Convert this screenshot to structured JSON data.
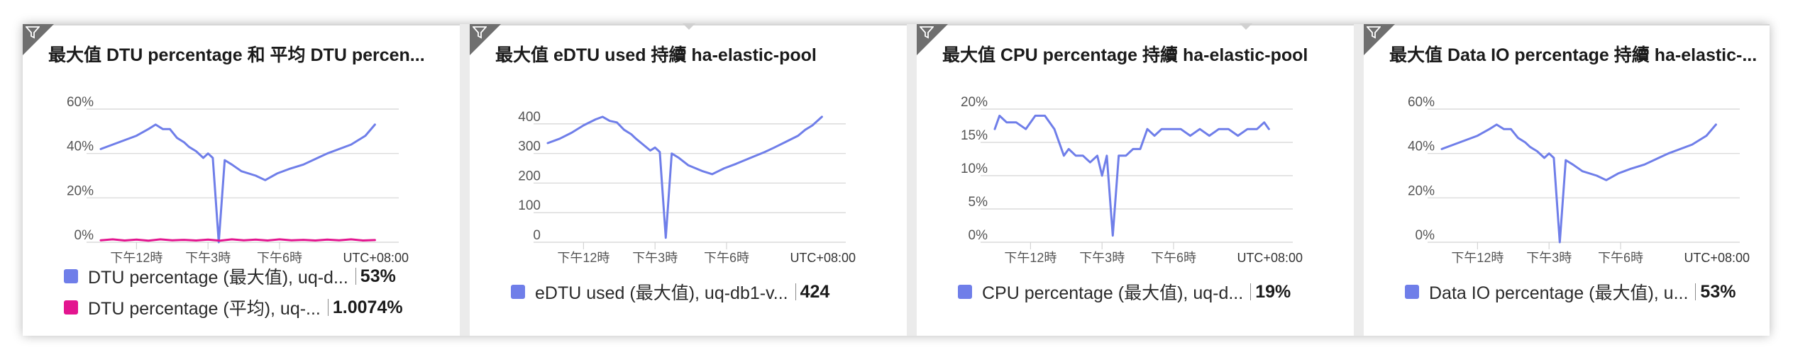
{
  "colors": {
    "series_blue": "#6f7ee9",
    "series_pink": "#e3158f",
    "grid": "#d4d4d4",
    "axis_text": "#555555"
  },
  "tiles": [
    {
      "title": "最大值 DTU percentage 和 平均 DTU percen...",
      "legend": [
        {
          "name": "DTU percentage (最大值), uq-d...",
          "value": "53%"
        },
        {
          "name": "DTU percentage (平均), uq-...",
          "value": "1.0074%"
        }
      ]
    },
    {
      "title": "最大值 eDTU used 持續 ha-elastic-pool",
      "legend": [
        {
          "name": "eDTU used (最大值), uq-db1-v...",
          "value": "424"
        }
      ]
    },
    {
      "title": "最大值 CPU percentage 持續 ha-elastic-pool",
      "legend": [
        {
          "name": "CPU percentage (最大值), uq-d...",
          "value": "19%"
        }
      ]
    },
    {
      "title": "最大值 Data IO percentage 持續 ha-elastic-...",
      "legend": [
        {
          "name": "Data IO percentage (最大值), u...",
          "value": "53%"
        }
      ]
    }
  ],
  "chart_data": [
    {
      "type": "line",
      "title": "最大值 DTU percentage 和 平均 DTU percen...",
      "y_ticks": [
        "60%",
        "40%",
        "20%",
        "0%"
      ],
      "y_tick_values": [
        60,
        40,
        20,
        0
      ],
      "ylim": [
        0,
        60
      ],
      "x_ticks": [
        "下午12時",
        "下午3時",
        "下午6時"
      ],
      "x_tick_values": [
        12,
        15,
        18
      ],
      "xlim": [
        10.5,
        23
      ],
      "timezone_label": "UTC+08:00",
      "grid": true,
      "series": [
        {
          "name": "DTU percentage (最大值), uq-d...",
          "color": "#6f7ee9",
          "x": [
            10.5,
            11,
            11.5,
            12,
            12.5,
            12.8,
            13.1,
            13.4,
            13.7,
            14,
            14.2,
            14.5,
            14.8,
            15,
            15.2,
            15.45,
            15.7,
            16,
            16.4,
            17,
            17.4,
            17.9,
            18.4,
            19,
            19.6,
            20,
            20.5,
            21,
            21.3,
            21.6,
            22
          ],
          "y": [
            42,
            44,
            46,
            48,
            51,
            53,
            51,
            51,
            47,
            45,
            43,
            41,
            38,
            40,
            38,
            0,
            37,
            35,
            32,
            30,
            28,
            31,
            33,
            35,
            38,
            40,
            42,
            44,
            46,
            48,
            53
          ]
        },
        {
          "name": "DTU percentage (平均), uq-...",
          "color": "#e3158f",
          "x": [
            10.5,
            11,
            11.5,
            12,
            12.5,
            13,
            13.5,
            14,
            14.5,
            15,
            15.5,
            16,
            16.5,
            17,
            17.5,
            18,
            18.5,
            19,
            19.5,
            20,
            20.5,
            21,
            21.5,
            22
          ],
          "y": [
            0.9,
            1.3,
            0.8,
            1.2,
            0.7,
            1.3,
            0.9,
            1.1,
            0.8,
            1.2,
            0.7,
            1.3,
            0.9,
            1.2,
            0.8,
            1.3,
            0.9,
            1.1,
            0.8,
            1.2,
            0.9,
            1.3,
            0.8,
            1.0
          ]
        }
      ]
    },
    {
      "type": "line",
      "title": "最大值 eDTU used 持續 ha-elastic-pool",
      "y_ticks": [
        "400",
        "300",
        "200",
        "100",
        "0"
      ],
      "y_tick_values": [
        400,
        300,
        200,
        100,
        0
      ],
      "ylim": [
        0,
        450
      ],
      "x_ticks": [
        "下午12時",
        "下午3時",
        "下午6時"
      ],
      "x_tick_values": [
        12,
        15,
        18
      ],
      "xlim": [
        10.5,
        23
      ],
      "timezone_label": "UTC+08:00",
      "grid": true,
      "series": [
        {
          "name": "eDTU used (最大值), uq-db1-v...",
          "color": "#6f7ee9",
          "x": [
            10.5,
            11,
            11.5,
            12,
            12.5,
            12.8,
            13.1,
            13.4,
            13.7,
            14,
            14.2,
            14.5,
            14.8,
            15,
            15.2,
            15.45,
            15.7,
            16,
            16.4,
            17,
            17.4,
            17.9,
            18.4,
            19,
            19.6,
            20,
            20.5,
            21,
            21.3,
            21.6,
            22
          ],
          "y": [
            335,
            350,
            370,
            395,
            415,
            424,
            410,
            405,
            380,
            365,
            350,
            330,
            310,
            320,
            305,
            15,
            300,
            285,
            260,
            240,
            230,
            250,
            265,
            285,
            305,
            320,
            340,
            360,
            380,
            395,
            424
          ]
        }
      ]
    },
    {
      "type": "line",
      "title": "最大值 CPU percentage 持續 ha-elastic-pool",
      "y_ticks": [
        "20%",
        "15%",
        "10%",
        "5%",
        "0%"
      ],
      "y_tick_values": [
        20,
        15,
        10,
        5,
        0
      ],
      "ylim": [
        0,
        20
      ],
      "x_ticks": [
        "下午12時",
        "下午3時",
        "下午6時"
      ],
      "x_tick_values": [
        12,
        15,
        18
      ],
      "xlim": [
        10.5,
        23
      ],
      "timezone_label": "UTC+08:00",
      "grid": true,
      "series": [
        {
          "name": "CPU percentage (最大值), uq-d...",
          "color": "#6f7ee9",
          "x": [
            10.5,
            10.7,
            11,
            11.4,
            11.8,
            12.2,
            12.6,
            13,
            13.4,
            13.6,
            13.9,
            14.2,
            14.5,
            14.8,
            15,
            15.2,
            15.45,
            15.7,
            16,
            16.3,
            16.6,
            16.9,
            17.2,
            17.5,
            17.9,
            18.3,
            18.7,
            19.1,
            19.5,
            19.9,
            20.3,
            20.7,
            21.1,
            21.5,
            21.8,
            22
          ],
          "y": [
            17,
            19,
            18,
            18,
            17,
            19,
            19,
            17,
            13,
            14,
            13,
            13,
            12,
            13,
            10,
            13,
            1,
            13,
            13,
            14,
            14,
            17,
            16,
            17,
            17,
            17,
            16,
            17,
            16,
            17,
            17,
            16,
            17,
            17,
            18,
            17
          ]
        }
      ]
    },
    {
      "type": "line",
      "title": "最大值 Data IO percentage 持續 ha-elastic-...",
      "y_ticks": [
        "60%",
        "40%",
        "20%",
        "0%"
      ],
      "y_tick_values": [
        60,
        40,
        20,
        0
      ],
      "ylim": [
        0,
        60
      ],
      "x_ticks": [
        "下午12時",
        "下午3時",
        "下午6時"
      ],
      "x_tick_values": [
        12,
        15,
        18
      ],
      "xlim": [
        10.5,
        23
      ],
      "timezone_label": "UTC+08:00",
      "grid": true,
      "series": [
        {
          "name": "Data IO percentage (最大值), u...",
          "color": "#6f7ee9",
          "x": [
            10.5,
            11,
            11.5,
            12,
            12.5,
            12.8,
            13.1,
            13.4,
            13.7,
            14,
            14.2,
            14.5,
            14.8,
            15,
            15.2,
            15.45,
            15.7,
            16,
            16.4,
            17,
            17.4,
            17.9,
            18.4,
            19,
            19.6,
            20,
            20.5,
            21,
            21.3,
            21.6,
            22
          ],
          "y": [
            42,
            44,
            46,
            48,
            51,
            53,
            51,
            51,
            47,
            45,
            43,
            41,
            38,
            40,
            38,
            0,
            37,
            35,
            32,
            30,
            28,
            31,
            33,
            35,
            38,
            40,
            42,
            44,
            46,
            48,
            53
          ]
        }
      ]
    }
  ]
}
